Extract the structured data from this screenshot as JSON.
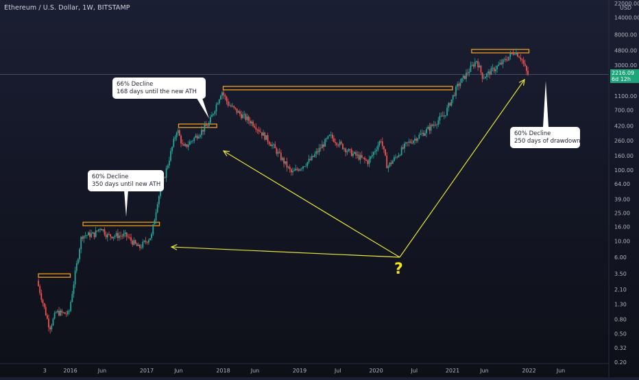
{
  "header": {
    "symbol_title": "Ethereum / U.S. Dollar, 1W, BITSTAMP"
  },
  "axis": {
    "currency_label": "USD",
    "y_ticks": [
      "22000.00",
      "14000.00",
      "8000.00",
      "4800.00",
      "3000.00",
      "1100.00",
      "700.00",
      "420.00",
      "260.00",
      "160.00",
      "100.00",
      "64.00",
      "39.00",
      "25.00",
      "16.00",
      "10.00",
      "6.00",
      "3.50",
      "2.10",
      "1.30",
      "0.80",
      "0.50",
      "0.32",
      "0.20"
    ],
    "x_ticks": [
      "3",
      "2016",
      "Jun",
      "2017",
      "Jun",
      "2018",
      "Jun",
      "2019",
      "Jul",
      "2020",
      "Jul",
      "2021",
      "Jun",
      "2022",
      "Jun"
    ]
  },
  "price_badge": {
    "price": "2216.09",
    "countdown": "6d 12h"
  },
  "annotations": {
    "callout_2016": {
      "line1": "60% Decline",
      "line2": "350 days until new ATH"
    },
    "callout_2018": {
      "line1": "66% Decline",
      "line2": "168 days until the new ATH"
    },
    "callout_2022": {
      "line1": "60% Decline",
      "line2": "250 days of drawdown"
    },
    "question_mark": "?"
  },
  "colors": {
    "up": "#26a69a",
    "down": "#ef5350",
    "ath_box": "#f0a020",
    "arrow": "#e8e83a",
    "price_line": "#5c6b8a"
  },
  "chart_data": {
    "type": "candlestick",
    "title": "Ethereum / U.S. Dollar, 1W, BITSTAMP",
    "y_scale": "log",
    "ylim": [
      0.2,
      22000
    ],
    "ylabel": "USD",
    "x_range": [
      "2015-08",
      "2022-07"
    ],
    "last_price": 2216.09,
    "price_path": [
      {
        "date": "2015-08",
        "price": 2.8
      },
      {
        "date": "2015-10",
        "price": 0.6
      },
      {
        "date": "2015-11",
        "price": 1.0
      },
      {
        "date": "2016-01",
        "price": 0.95
      },
      {
        "date": "2016-02",
        "price": 3.5
      },
      {
        "date": "2016-03",
        "price": 12.0
      },
      {
        "date": "2016-05",
        "price": 12.5
      },
      {
        "date": "2016-06",
        "price": 16.0
      },
      {
        "date": "2016-07",
        "price": 12.0
      },
      {
        "date": "2016-10",
        "price": 12.0
      },
      {
        "date": "2016-12",
        "price": 8.0
      },
      {
        "date": "2017-02",
        "price": 12.0
      },
      {
        "date": "2017-03",
        "price": 40.0
      },
      {
        "date": "2017-04",
        "price": 80.0
      },
      {
        "date": "2017-06",
        "price": 380.0
      },
      {
        "date": "2017-07",
        "price": 200.0
      },
      {
        "date": "2017-09",
        "price": 300.0
      },
      {
        "date": "2017-11",
        "price": 450.0
      },
      {
        "date": "2018-01",
        "price": 1300.0
      },
      {
        "date": "2018-02",
        "price": 850.0
      },
      {
        "date": "2018-04",
        "price": 600.0
      },
      {
        "date": "2018-06",
        "price": 450.0
      },
      {
        "date": "2018-09",
        "price": 220.0
      },
      {
        "date": "2018-12",
        "price": 90.0
      },
      {
        "date": "2019-03",
        "price": 140.0
      },
      {
        "date": "2019-06",
        "price": 300.0
      },
      {
        "date": "2019-09",
        "price": 180.0
      },
      {
        "date": "2019-12",
        "price": 130.0
      },
      {
        "date": "2020-02",
        "price": 270.0
      },
      {
        "date": "2020-03",
        "price": 110.0
      },
      {
        "date": "2020-06",
        "price": 230.0
      },
      {
        "date": "2020-09",
        "price": 350.0
      },
      {
        "date": "2020-12",
        "price": 600.0
      },
      {
        "date": "2021-02",
        "price": 1500.0
      },
      {
        "date": "2021-05",
        "price": 3500.0
      },
      {
        "date": "2021-06",
        "price": 2000.0
      },
      {
        "date": "2021-09",
        "price": 3200.0
      },
      {
        "date": "2021-11",
        "price": 4700.0
      },
      {
        "date": "2021-12",
        "price": 3800.0
      },
      {
        "date": "2022-01",
        "price": 2216.09
      }
    ],
    "ath_levels": [
      {
        "from": "2015-08",
        "to": "2016-01",
        "price": 3.3
      },
      {
        "from": "2016-03",
        "to": "2017-03",
        "price": 17.5
      },
      {
        "from": "2017-06",
        "to": "2017-12",
        "price": 420.0
      },
      {
        "from": "2018-01",
        "to": "2021-01",
        "price": 1420.0
      },
      {
        "from": "2021-04",
        "to": "2022-01",
        "price": 4700.0
      }
    ]
  }
}
